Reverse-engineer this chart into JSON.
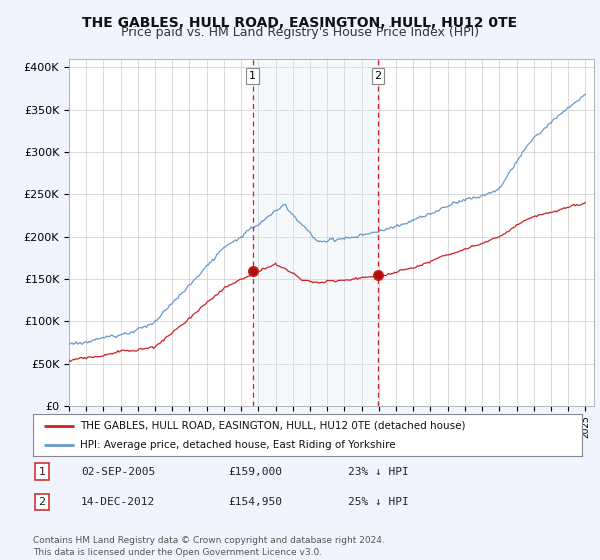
{
  "title": "THE GABLES, HULL ROAD, EASINGTON, HULL, HU12 0TE",
  "subtitle": "Price paid vs. HM Land Registry's House Price Index (HPI)",
  "title_fontsize": 10,
  "subtitle_fontsize": 9,
  "ylabel_ticks": [
    "£0",
    "£50K",
    "£100K",
    "£150K",
    "£200K",
    "£250K",
    "£300K",
    "£350K",
    "£400K"
  ],
  "ytick_values": [
    0,
    50000,
    100000,
    150000,
    200000,
    250000,
    300000,
    350000,
    400000
  ],
  "ylim": [
    0,
    410000
  ],
  "xlim_start": 1995.0,
  "xlim_end": 2025.5,
  "hpi_color": "#6699cc",
  "price_color": "#cc2222",
  "background_color": "#f0f4ff",
  "plot_bg_color": "#ffffff",
  "grid_color": "#cccccc",
  "shade_color": "#dce8f5",
  "sale1_year": 2005.67,
  "sale1_price": 159000,
  "sale2_year": 2012.96,
  "sale2_price": 154950,
  "vline_color": "#cc2222",
  "legend_label1": "THE GABLES, HULL ROAD, EASINGTON, HULL, HU12 0TE (detached house)",
  "legend_label2": "HPI: Average price, detached house, East Riding of Yorkshire",
  "annotation1": "1",
  "annotation2": "2",
  "note1_label": "1",
  "note1_date": "02-SEP-2005",
  "note1_price": "£159,000",
  "note1_hpi": "23% ↓ HPI",
  "note2_label": "2",
  "note2_date": "14-DEC-2012",
  "note2_price": "£154,950",
  "note2_hpi": "25% ↓ HPI",
  "footer": "Contains HM Land Registry data © Crown copyright and database right 2024.\nThis data is licensed under the Open Government Licence v3.0."
}
